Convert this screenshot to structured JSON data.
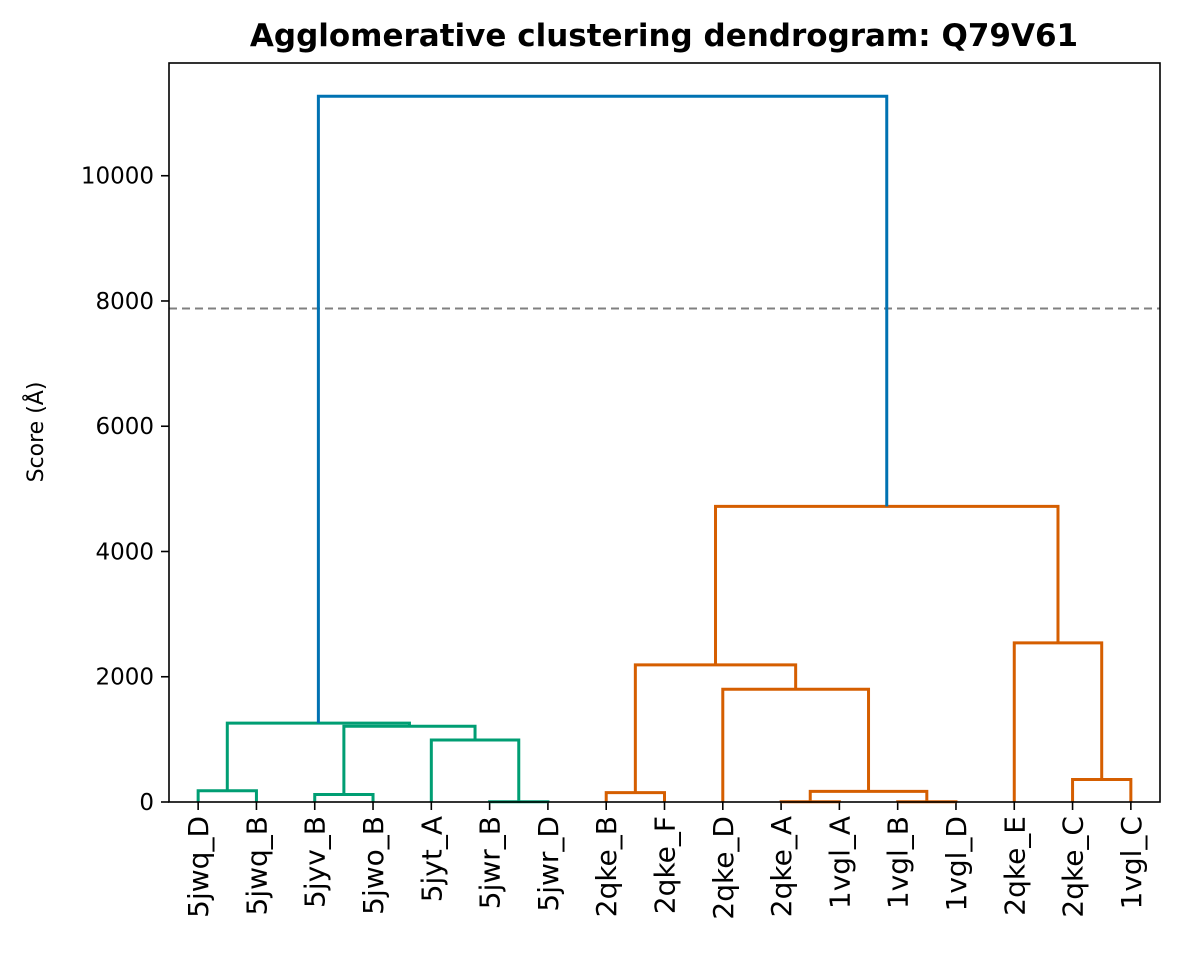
{
  "chart_data": {
    "type": "dendrogram",
    "title": "Agglomerative clustering dendrogram: Q79V61",
    "ylabel": "Score (Å)",
    "xlabel": "",
    "ylim": [
      0,
      11800
    ],
    "yticks": [
      0,
      2000,
      4000,
      6000,
      8000,
      10000
    ],
    "ytick_labels": [
      "0",
      "2000",
      "4000",
      "6000",
      "8000",
      "10000"
    ],
    "grid": false,
    "threshold": {
      "value": 7880,
      "color": "#808080",
      "style": "dashed"
    },
    "leaves": [
      "5jwq_D",
      "5jwq_B",
      "5jyv_B",
      "5jwo_B",
      "5jyt_A",
      "5jwr_B",
      "5jwr_D",
      "2qke_B",
      "2qke_F",
      "2qke_D",
      "2qke_A",
      "1vgl_A",
      "1vgl_B",
      "1vgl_D",
      "2qke_E",
      "2qke_C",
      "1vgl_C"
    ],
    "colors": {
      "green": "#009e73",
      "orange": "#d55e00",
      "blue": "#0072b2"
    },
    "merges": [
      {
        "xs": [
          0,
          0,
          1,
          1
        ],
        "ys": [
          0,
          180,
          180,
          0
        ],
        "color": "green"
      },
      {
        "xs": [
          2,
          2,
          3,
          3
        ],
        "ys": [
          0,
          120,
          120,
          0
        ],
        "color": "green"
      },
      {
        "xs": [
          5,
          5,
          6,
          6
        ],
        "ys": [
          0,
          5,
          5,
          0
        ],
        "color": "green"
      },
      {
        "xs": [
          4,
          4,
          5.5,
          5.5
        ],
        "ys": [
          0,
          990,
          990,
          5
        ],
        "color": "green"
      },
      {
        "xs": [
          2.5,
          2.5,
          4.75,
          4.75
        ],
        "ys": [
          120,
          1210,
          1210,
          990
        ],
        "color": "green"
      },
      {
        "xs": [
          0.5,
          0.5,
          3.625,
          3.625
        ],
        "ys": [
          180,
          1260,
          1260,
          1210
        ],
        "color": "green"
      },
      {
        "xs": [
          7,
          7,
          8,
          8
        ],
        "ys": [
          0,
          150,
          150,
          0
        ],
        "color": "orange"
      },
      {
        "xs": [
          10,
          10,
          11,
          11
        ],
        "ys": [
          0,
          5,
          5,
          0
        ],
        "color": "orange"
      },
      {
        "xs": [
          12,
          12,
          13,
          13
        ],
        "ys": [
          0,
          5,
          5,
          0
        ],
        "color": "orange"
      },
      {
        "xs": [
          10.5,
          10.5,
          12.5,
          12.5
        ],
        "ys": [
          5,
          170,
          170,
          5
        ],
        "color": "orange"
      },
      {
        "xs": [
          9,
          9,
          11.5,
          11.5
        ],
        "ys": [
          0,
          1800,
          1800,
          170
        ],
        "color": "orange"
      },
      {
        "xs": [
          7.5,
          7.5,
          10.25,
          10.25
        ],
        "ys": [
          150,
          2190,
          2190,
          1800
        ],
        "color": "orange"
      },
      {
        "xs": [
          15,
          15,
          16,
          16
        ],
        "ys": [
          0,
          360,
          360,
          0
        ],
        "color": "orange"
      },
      {
        "xs": [
          14,
          14,
          15.5,
          15.5
        ],
        "ys": [
          0,
          2540,
          2540,
          360
        ],
        "color": "orange"
      },
      {
        "xs": [
          8.875,
          8.875,
          14.75,
          14.75
        ],
        "ys": [
          2190,
          4720,
          4720,
          2540
        ],
        "color": "orange"
      },
      {
        "xs": [
          2.0625,
          2.0625,
          11.8125,
          11.8125
        ],
        "ys": [
          1260,
          11270,
          11270,
          4720
        ],
        "color": "blue"
      }
    ]
  }
}
